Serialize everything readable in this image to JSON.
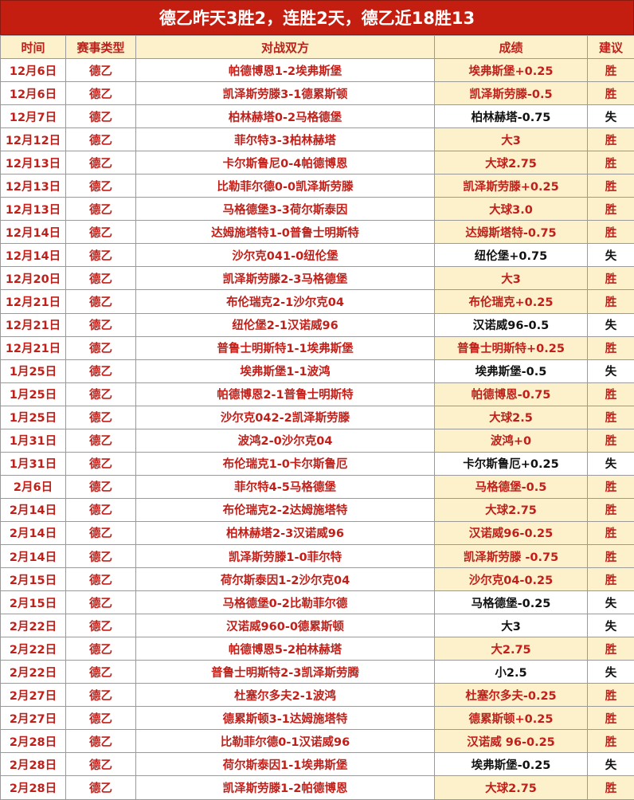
{
  "title": "德乙昨天3胜2，连胜2天，德乙近18胜13",
  "headers": [
    "时间",
    "赛事类型",
    "对战双方",
    "成绩",
    "建议"
  ],
  "colors": {
    "title_bg": "#c41e10",
    "accent_text": "#c0201a",
    "highlight_bg": "#fdf1cc"
  },
  "rows": [
    [
      "12月6日",
      "德乙",
      "帕德博恩1-2埃弗斯堡",
      "埃弗斯堡+0.25",
      "胜"
    ],
    [
      "12月6日",
      "德乙",
      "凯泽斯劳滕3-1德累斯顿",
      "凯泽斯劳滕-0.5",
      "胜"
    ],
    [
      "12月7日",
      "德乙",
      "柏林赫塔0-2马格德堡",
      "柏林赫塔-0.75",
      "失"
    ],
    [
      "12月12日",
      "德乙",
      "菲尔特3-3柏林赫塔",
      "大3",
      "胜"
    ],
    [
      "12月13日",
      "德乙",
      "卡尔斯鲁尼0-4帕德博恩",
      "大球2.75",
      "胜"
    ],
    [
      "12月13日",
      "德乙",
      "比勒菲尔德0-0凯泽斯劳滕",
      "凯泽斯劳滕+0.25",
      "胜"
    ],
    [
      "12月13日",
      "德乙",
      "马格德堡3-3荷尔斯泰因",
      "大球3.0",
      "胜"
    ],
    [
      "12月14日",
      "德乙",
      "达姆施塔特1-0普鲁士明斯特",
      "达姆斯塔特-0.75",
      "胜"
    ],
    [
      "12月14日",
      "德乙",
      "沙尔克041-0纽伦堡",
      "纽伦堡+0.75",
      "失"
    ],
    [
      "12月20日",
      "德乙",
      "凯泽斯劳滕2-3马格德堡",
      "大3",
      "胜"
    ],
    [
      "12月21日",
      "德乙",
      "布伦瑞克2-1沙尔克04",
      "布伦瑞克+0.25",
      "胜"
    ],
    [
      "12月21日",
      "德乙",
      "纽伦堡2-1汉诺威96",
      "汉诺威96-0.5",
      "失"
    ],
    [
      "12月21日",
      "德乙",
      "普鲁士明斯特1-1埃弗斯堡",
      "普鲁士明斯特+0.25",
      "胜"
    ],
    [
      "1月25日",
      "德乙",
      "埃弗斯堡1-1波鸿",
      "埃弗斯堡-0.5",
      "失"
    ],
    [
      "1月25日",
      "德乙",
      "帕德博恩2-1普鲁士明斯特",
      "帕德博恩-0.75",
      "胜"
    ],
    [
      "1月25日",
      "德乙",
      "沙尔克042-2凯泽斯劳滕",
      "大球2.5",
      "胜"
    ],
    [
      "1月31日",
      "德乙",
      "波鸿2-0沙尔克04",
      "波鸿+0",
      "胜"
    ],
    [
      "1月31日",
      "德乙",
      "布伦瑞克1-0卡尔斯鲁厄",
      "卡尔斯鲁厄+0.25",
      "失"
    ],
    [
      "2月6日",
      "德乙",
      "菲尔特4-5马格德堡",
      "马格德堡-0.5",
      "胜"
    ],
    [
      "2月14日",
      "德乙",
      "布伦瑞克2-2达姆施塔特",
      "大球2.75",
      "胜"
    ],
    [
      "2月14日",
      "德乙",
      "柏林赫塔2-3汉诺威96",
      "汉诺威96-0.25",
      "胜"
    ],
    [
      "2月14日",
      "德乙",
      "凯泽斯劳滕1-0菲尔特",
      "凯泽斯劳滕 -0.75",
      "胜"
    ],
    [
      "2月15日",
      "德乙",
      "荷尔斯泰因1-2沙尔克04",
      "沙尔克04-0.25",
      "胜"
    ],
    [
      "2月15日",
      "德乙",
      "马格德堡0-2比勒菲尔德",
      "马格德堡-0.25",
      "失"
    ],
    [
      "2月22日",
      "德乙",
      "汉诺威960-0德累斯顿",
      "大3",
      "失"
    ],
    [
      "2月22日",
      "德乙",
      "帕德博恩5-2柏林赫塔",
      "大2.75",
      "胜"
    ],
    [
      "2月22日",
      "德乙",
      "普鲁士明斯特2-3凯泽斯劳腾",
      "小2.5",
      "失"
    ],
    [
      "2月27日",
      "德乙",
      "杜塞尔多夫2-1波鸿",
      "杜塞尔多夫-0.25",
      "胜"
    ],
    [
      "2月27日",
      "德乙",
      "德累斯顿3-1达姆施塔特",
      "德累斯顿+0.25",
      "胜"
    ],
    [
      "2月28日",
      "德乙",
      "比勒菲尔德0-1汉诺威96",
      "汉诺威 96-0.25",
      "胜"
    ],
    [
      "2月28日",
      "德乙",
      "荷尔斯泰因1-1埃弗斯堡",
      "埃弗斯堡-0.25",
      "失"
    ],
    [
      "2月28日",
      "德乙",
      "凯泽斯劳滕1-2帕德博恩",
      "大球2.75",
      "胜"
    ]
  ]
}
